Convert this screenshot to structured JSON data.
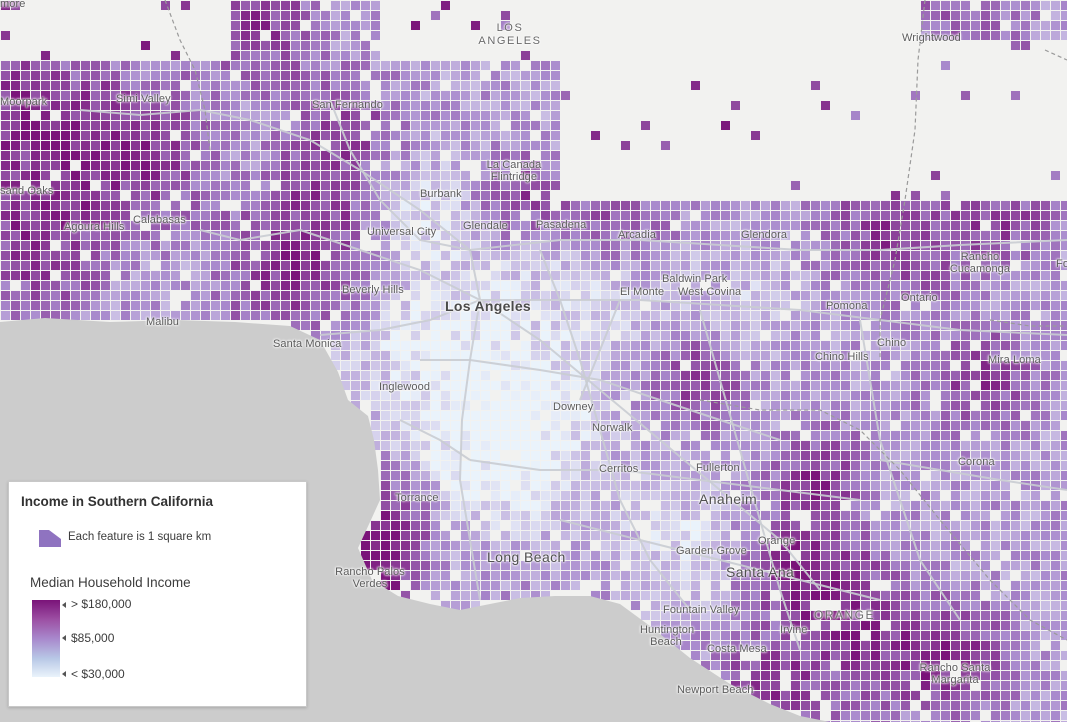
{
  "map": {
    "colors": {
      "land": "#f2f2f0",
      "water": "#cccccc",
      "roads": "#c9ccd2",
      "boundary": "#9a9a9a",
      "ramp_high": "#7a1379",
      "ramp_mid": "#a888cc",
      "ramp_low": "#eaf3fb"
    },
    "place_labels": [
      {
        "name": "more"
      },
      {
        "name": "LOS ANGELES"
      },
      {
        "name": "Wrightwood"
      },
      {
        "name": "Moorpark"
      },
      {
        "name": "Simi Valley"
      },
      {
        "name": "San Fernando"
      },
      {
        "name": "La Canada Flintridge"
      },
      {
        "name": "Burbank"
      },
      {
        "name": "sand Oaks"
      },
      {
        "name": "Calabasas"
      },
      {
        "name": "Agoura Hills"
      },
      {
        "name": "Universal City"
      },
      {
        "name": "Glendale"
      },
      {
        "name": "Pasadena"
      },
      {
        "name": "Arcadia"
      },
      {
        "name": "Glendora"
      },
      {
        "name": "Rancho Cucamonga"
      },
      {
        "name": "Fo"
      },
      {
        "name": "Baldwin Park"
      },
      {
        "name": "El Monte"
      },
      {
        "name": "West Covina"
      },
      {
        "name": "Beverly Hills"
      },
      {
        "name": "Los Angeles"
      },
      {
        "name": "Pomona"
      },
      {
        "name": "Ontario"
      },
      {
        "name": "Malibu"
      },
      {
        "name": "Santa Monica"
      },
      {
        "name": "Chino Hills"
      },
      {
        "name": "Chino"
      },
      {
        "name": "Mira Loma"
      },
      {
        "name": "Inglewood"
      },
      {
        "name": "Downey"
      },
      {
        "name": "Norwalk"
      },
      {
        "name": "Corona"
      },
      {
        "name": "Cerritos"
      },
      {
        "name": "Fullerton"
      },
      {
        "name": "Torrance"
      },
      {
        "name": "Anaheim"
      },
      {
        "name": "Long Beach"
      },
      {
        "name": "Orange"
      },
      {
        "name": "Garden Grove"
      },
      {
        "name": "Rancho Palos Verdes"
      },
      {
        "name": "Santa Ana"
      },
      {
        "name": "Fountain Valley"
      },
      {
        "name": "ORANGE"
      },
      {
        "name": "Irvine"
      },
      {
        "name": "Huntington Beach"
      },
      {
        "name": "Costa Mesa"
      },
      {
        "name": "Rancho Santa Margarita"
      },
      {
        "name": "Newport Beach"
      }
    ]
  },
  "legend": {
    "title": "Income in Southern California",
    "feature_label": "Each feature is 1 square km",
    "feature_color": "#8f73c0",
    "field_label": "Median Household Income",
    "ramp_labels": {
      "high": "> $180,000",
      "mid": "$85,000",
      "low": "< $30,000"
    }
  }
}
